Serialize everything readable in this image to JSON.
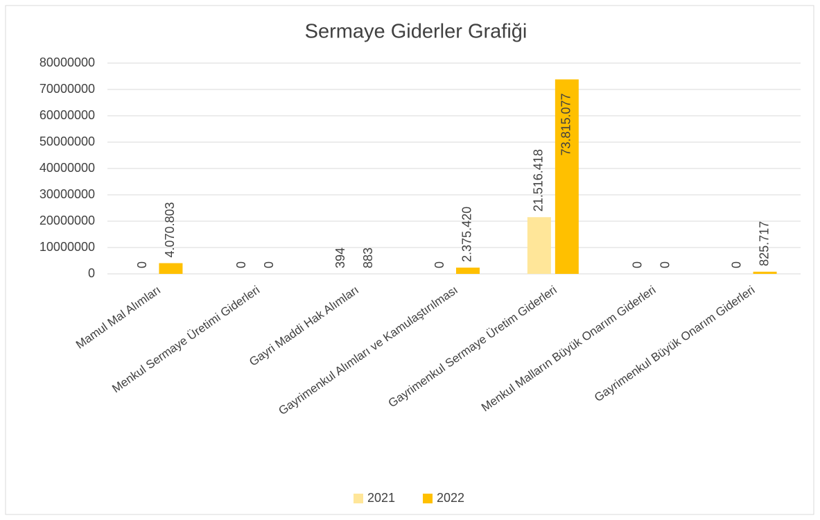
{
  "chart_data": {
    "type": "bar",
    "title": "Sermaye Giderler Grafiği",
    "categories": [
      "Mamul Mal Alımları",
      "Menkul Sermaye Üretimi Giderleri",
      "Gayri Maddi Hak Alımları",
      "Gayrimenkul Alımları ve Kamulaştırılması",
      "Gayrimenkul Sermaye Üretim Giderleri",
      "Menkul Malların Büyük Onarım Giderleri",
      "Gayrimenkul Büyük Onarım Giderleri"
    ],
    "series": [
      {
        "name": "2021",
        "color": "#ffe699",
        "values": [
          0,
          0,
          394,
          0,
          21516418,
          0,
          0
        ],
        "value_labels": [
          "0",
          "0",
          "394",
          "0",
          "21.516.418",
          "0",
          "0"
        ]
      },
      {
        "name": "2022",
        "color": "#ffc000",
        "values": [
          4070803,
          0,
          883,
          2375420,
          73815077,
          0,
          825717
        ],
        "value_labels": [
          "4.070.803",
          "0",
          "883",
          "2.375.420",
          "73.815.077",
          "0",
          "825.717"
        ]
      }
    ],
    "ylim": [
      0,
      80000000
    ],
    "yticks": [
      0,
      10000000,
      20000000,
      30000000,
      40000000,
      50000000,
      60000000,
      70000000,
      80000000
    ],
    "grid": true,
    "legend": "bottom"
  }
}
